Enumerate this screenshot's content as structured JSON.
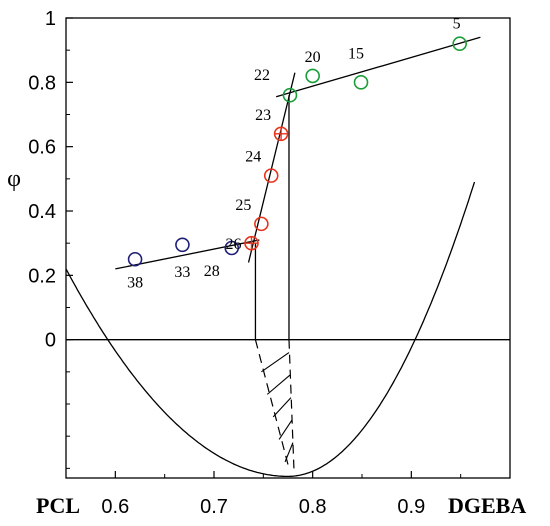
{
  "chart_data": {
    "type": "scatter",
    "ylabel": "φ",
    "x_left_label": "PCL",
    "x_right_label": "DGEBA",
    "xlim": [
      0.55,
      1.0
    ],
    "ylim": [
      -0.43,
      1.0
    ],
    "x_ticks": [
      "0.6",
      "0.7",
      "0.8",
      "0.9"
    ],
    "y_ticks": [
      "0",
      "0.2",
      "0.4",
      "0.6",
      "0.8",
      "1"
    ],
    "grid": false,
    "points": [
      {
        "label": "38",
        "x": 0.62,
        "y": 0.25,
        "color": "#1f1f7a",
        "marker": "circle"
      },
      {
        "label": "33",
        "x": 0.668,
        "y": 0.295,
        "color": "#1f1f7a",
        "marker": "circle"
      },
      {
        "label": "28",
        "x": 0.718,
        "y": 0.285,
        "color": "#1f1f7a",
        "marker": "circle"
      },
      {
        "label": "",
        "x": 0.738,
        "y": 0.3,
        "color": "#e8331c",
        "marker": "circle-cross"
      },
      {
        "label": "26",
        "x": 0.748,
        "y": 0.36,
        "color": "#e8331c",
        "marker": "circle"
      },
      {
        "label": "25",
        "x": 0.758,
        "y": 0.51,
        "color": "#e8331c",
        "marker": "circle"
      },
      {
        "label": "24",
        "x": 0.768,
        "y": 0.64,
        "color": "#e8331c",
        "marker": "circle"
      },
      {
        "label": "23",
        "x": 0.777,
        "y": 0.76,
        "color": "#e8331c",
        "marker": "circle-cross"
      },
      {
        "label": "22",
        "x": 0.8,
        "y": 0.82,
        "color": "#1a9e3a",
        "marker": "circle"
      },
      {
        "label": "20",
        "x": 0.849,
        "y": 0.8,
        "color": "#1a9e3a",
        "marker": "circle"
      },
      {
        "label": "15",
        "x": 0.949,
        "y": 0.92,
        "color": "#1a9e3a",
        "marker": "circle"
      },
      {
        "label": "5",
        "x": 0.949,
        "y": 0.92,
        "color": "#1a9e3a",
        "marker": "circle"
      }
    ],
    "fit_lines": [
      {
        "x": [
          0.6,
          0.746
        ],
        "y": [
          0.22,
          0.31
        ]
      },
      {
        "x": [
          0.735,
          0.782
        ],
        "y": [
          0.24,
          0.83
        ]
      },
      {
        "x": [
          0.763,
          0.97
        ],
        "y": [
          0.755,
          0.94
        ]
      }
    ],
    "free_energy_curve": {
      "x_min": 0.6,
      "x_max": 0.95,
      "y_min": -0.425,
      "x_vertex": 0.775,
      "left_y_at_055": 0.22,
      "right_y_at_1": 0.5
    },
    "phase_boundaries": [
      0.742,
      0.776
    ]
  }
}
